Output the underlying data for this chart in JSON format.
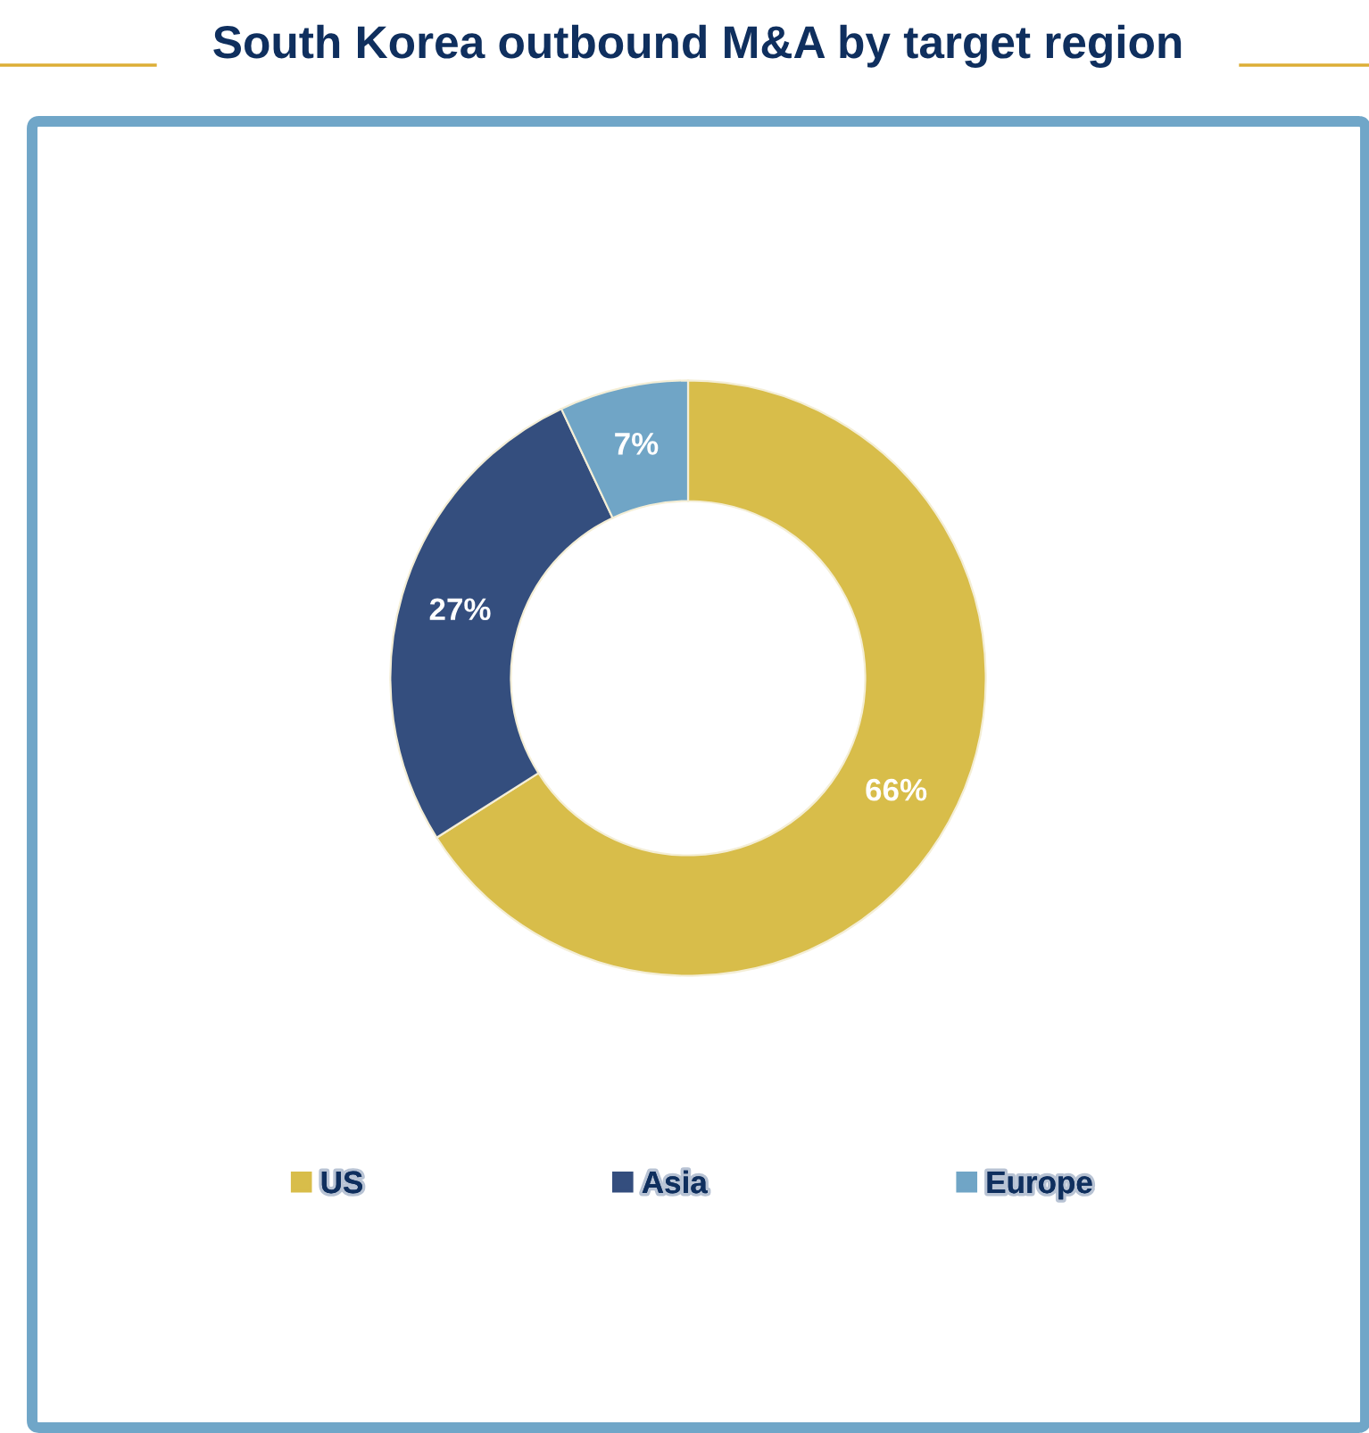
{
  "chart_data": {
    "type": "donut",
    "title": "South Korea outbound M&A by target region",
    "categories": [
      "US",
      "Asia",
      "Europe"
    ],
    "values": [
      66,
      27,
      7
    ],
    "colors": [
      "#d8bd4a",
      "#344e7e",
      "#70a5c6"
    ],
    "value_labels": [
      "66%",
      "27%",
      "7%"
    ],
    "legend": "bottom"
  }
}
